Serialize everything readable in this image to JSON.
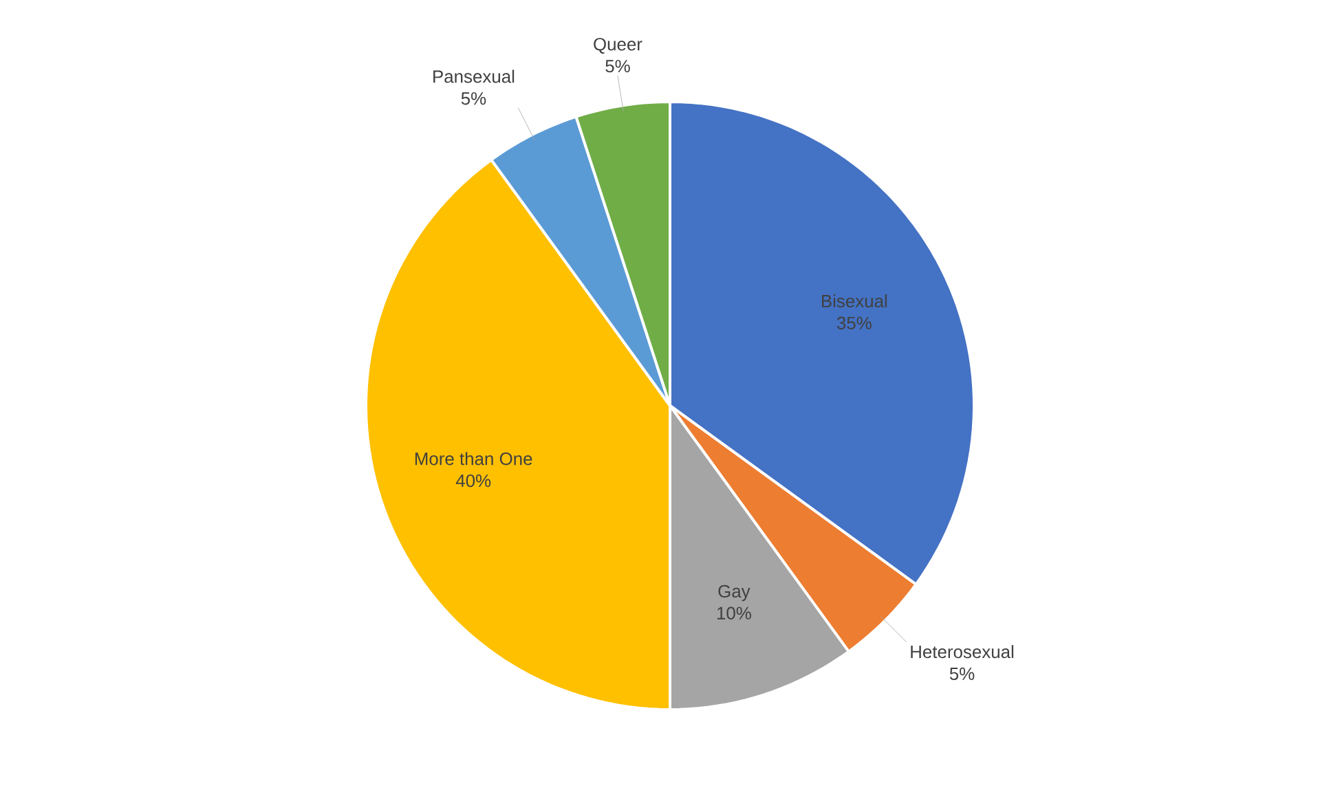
{
  "chart_data": {
    "type": "pie",
    "categories": [
      "Bisexual",
      "Heterosexual",
      "Gay",
      "More than One",
      "Pansexual",
      "Queer"
    ],
    "values": [
      35,
      5,
      10,
      40,
      5,
      5
    ],
    "value_labels": [
      "35%",
      "5%",
      "10%",
      "40%",
      "5%",
      "5%"
    ],
    "colors": [
      "#4472c4",
      "#ed7d31",
      "#a5a5a5",
      "#ffc000",
      "#5b9bd5",
      "#70ad47"
    ]
  }
}
